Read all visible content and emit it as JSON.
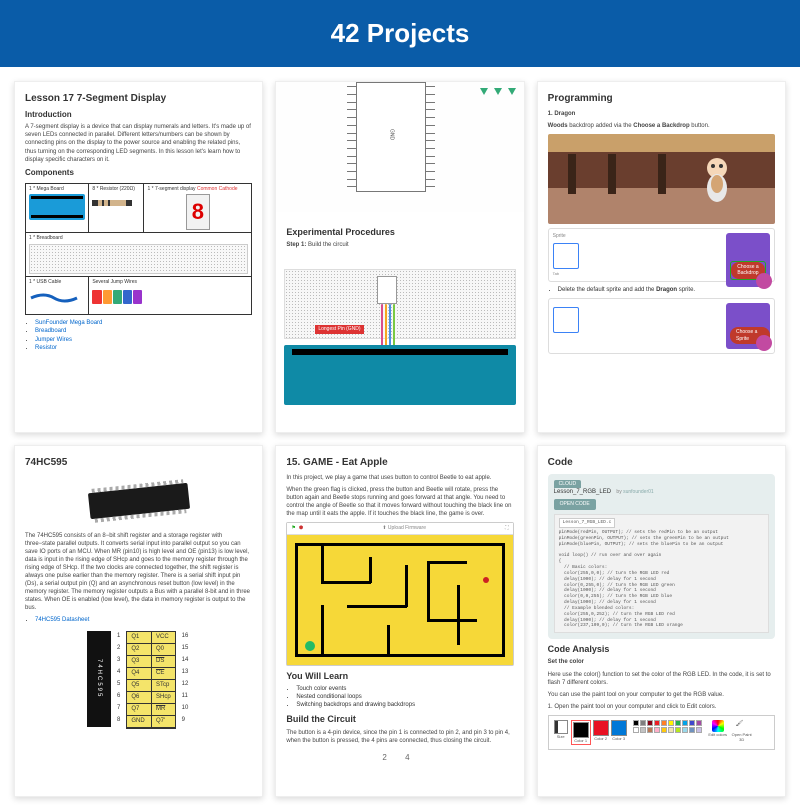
{
  "banner": {
    "title": "42 Projects",
    "bg": "#0a5ca8"
  },
  "card1": {
    "title": "Lesson 17 7-Segment Display",
    "intro_h": "Introduction",
    "intro": "A 7-segment display is a device that can display numerals and letters. It's made up of seven LEDs connected in parallel. Different letters/numbers can be shown by connecting pins on the display to the power source and enabling the related pins, thus turning on the corresponding LED segments. In this lesson let's learn how to display specific characters on it.",
    "components_h": "Components",
    "items": {
      "mega": "1 * Mega Board",
      "resistor": "8 * Resistor (220Ω)",
      "seg": "1 * 7-segment display",
      "seg_sub": "Common Cathode",
      "breadboard": "1 * Breadboard",
      "usb": "1 * USB Cable",
      "jumpers": "Several Jump Wires"
    },
    "links": [
      "SunFounder Mega Board",
      "Breadboard",
      "Jumper Wires",
      "Resistor"
    ]
  },
  "card2": {
    "exp_h": "Experimental Procedures",
    "step1_label": "Step 1:",
    "step1_text": "Build the circuit",
    "longest_pin": "Longest Pin (GND)",
    "gnd": "GND",
    "wire_colors": [
      "#d94e8c",
      "#f5a623",
      "#4a90e2",
      "#7ac943"
    ]
  },
  "card3": {
    "title": "Programming",
    "line1_b": "1. Dragon",
    "line2_pre": "Woods",
    "line2_mid": " backdrop added via the ",
    "line2_b": "Choose a Backdrop",
    "line2_post": " button.",
    "btn1": "Choose a Backdrop",
    "bullet": "Delete the default sprite and add the ",
    "bullet_b": "Dragon",
    "bullet_post": " sprite.",
    "btn2": "Choose a Sprite",
    "sprite_label": "Sprite",
    "tab_label": "Tab"
  },
  "card4": {
    "title": "74HC595",
    "desc": "The 74HC595 consists of an 8−bit shift register and a storage register with three−state parallel outputs. It converts serial input into parallel output so you can save IO ports of an MCU. When MR (pin10) is high level and OE (pin13) is low level, data is input in the rising edge of SHcp and goes to the memory register through the rising edge of SHcp. If the two clocks are connected together, the shift register is always one pulse earlier than the memory register. There is a serial shift input pin (Ds), a serial output pin (Q) and an asynchronous reset button (low level) in the memory register. The memory register outputs a Bus with a parallel 8-bit and in three states. When OE is enabled (low level), the data in memory register is output to the bus.",
    "link": "74HC595 Datasheet",
    "chip_text": "74HC595",
    "left_pins": [
      "Q1",
      "Q2",
      "Q3",
      "Q4",
      "Q5",
      "Q6",
      "Q7",
      "GND"
    ],
    "right_pins": [
      "VCC",
      "Q0",
      "DS",
      "CE",
      "STcp",
      "SHcp",
      "MR",
      "Q7'"
    ],
    "left_nums": [
      "1",
      "2",
      "3",
      "4",
      "5",
      "6",
      "7",
      "8"
    ],
    "right_nums": [
      "16",
      "15",
      "14",
      "13",
      "12",
      "11",
      "10",
      "9"
    ]
  },
  "card5": {
    "title": "15. GAME - Eat Apple",
    "p1": "In this project, we play a game that uses button to control Beetle to eat apple.",
    "p2": "When the green flag is clicked, press the button and Beetle will rotate, press the button again and Beetle stops running and goes forward at that angle. You need to control the angle of Beetle so that it moves forward without touching the black line on the map until it eats the apple. If it touches the black line, the game is over.",
    "topbar": "Upload Firmware",
    "learn_h": "You Will Learn",
    "learn": [
      "Touch color events",
      "Nested conditional loops",
      "Switching backdrops and drawing backdrops"
    ],
    "build_h": "Build the Circuit",
    "build_p": "The button is a 4-pin device, since the pin 1 is connected to pin 2, and pin 3 to pin 4, when the button is pressed, the 4 pins are connected, thus closing the circuit.",
    "pager": "2   4"
  },
  "card6": {
    "title": "Code",
    "cloud": "CLOUD",
    "proj_name": "Lesson_7_RGB_LED",
    "by_pre": " by ",
    "by": "sunfounder01",
    "open": "OPEN CODE",
    "tab": "Lesson_7_RGB_LED.c",
    "code": "pinMode(redPin, OUTPUT); // sets the redPin to be an output\npinMode(greenPin, OUTPUT); // sets the greenPin to be an output\npinMode(bluePin, OUTPUT); // sets the bluePin to be an output\n\nvoid loop() // run over and over again\n{\n  // Basic colors:\n  color(255,0,0); // turn the RGB LED red\n  delay(1000); // delay for 1 second\n  color(0,255,0); // turn the RGB LED green\n  delay(1000); // delay for 1 second\n  color(0,0,255); // turn the RGB LED blue\n  delay(1000); // delay for 1 second\n  // Example blended colors:\n  color(255,0,252); // turn the RGB LED red\n  delay(1000); // delay for 1 second\n  color(237,109,0); // turn the RGB LED orange",
    "analysis_h": "Code Analysis",
    "set_h": "Set the color",
    "set_p": "Here use the color() function to set the color of the RGB LED. In the code, it is set to flash 7 different colors.",
    "paint_p": "You can use the paint tool on your computer to get the RGB value.",
    "step1": "1. Open the paint tool on your computer and click to Edit colors.",
    "palette_labels": [
      "Size",
      "Color 1",
      "Color 2",
      "Color 3"
    ],
    "palette_main": [
      "#000000",
      "#e81123",
      "#0078d7"
    ],
    "palette_grid": [
      "#000",
      "#7f7f7f",
      "#880015",
      "#ed1c24",
      "#ff7f27",
      "#fff200",
      "#22b14c",
      "#00a2e8",
      "#3f48cc",
      "#a349a4",
      "#fff",
      "#c3c3c3",
      "#b97a57",
      "#ffaec9",
      "#ffc90e",
      "#efe4b0",
      "#b5e61d",
      "#99d9ea",
      "#7092be",
      "#c8bfe7"
    ],
    "edit_label": "Edit colors",
    "open_label": "Open Paint 3D"
  }
}
